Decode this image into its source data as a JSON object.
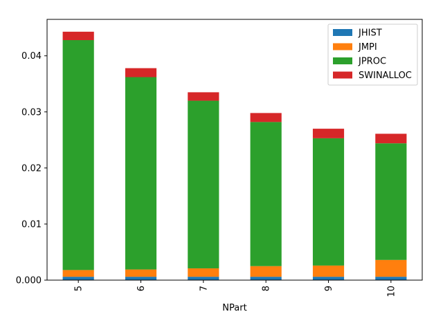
{
  "chart_data": {
    "type": "bar",
    "stacked": true,
    "categories": [
      "5",
      "6",
      "7",
      "8",
      "9",
      "10"
    ],
    "series": [
      {
        "name": "JHIST",
        "color": "#1f77b4",
        "values": [
          0.0006,
          0.0006,
          0.0006,
          0.0006,
          0.0006,
          0.0006
        ]
      },
      {
        "name": "JMPI",
        "color": "#ff7f0e",
        "values": [
          0.0012,
          0.0013,
          0.0015,
          0.0019,
          0.002,
          0.003
        ]
      },
      {
        "name": "JPROC",
        "color": "#2ca02c",
        "values": [
          0.041,
          0.0343,
          0.0299,
          0.0257,
          0.0227,
          0.0208
        ]
      },
      {
        "name": "SWINALLOC",
        "color": "#d62728",
        "values": [
          0.0015,
          0.0016,
          0.0015,
          0.0016,
          0.0017,
          0.0017
        ]
      }
    ],
    "xlabel": "NPart",
    "ylabel": "",
    "ylim": [
      0,
      0.0465
    ],
    "yticks": [
      "0.000",
      "0.01",
      "0.02",
      "0.03",
      "0.04"
    ],
    "legend_position": "top-right",
    "grid": false
  }
}
